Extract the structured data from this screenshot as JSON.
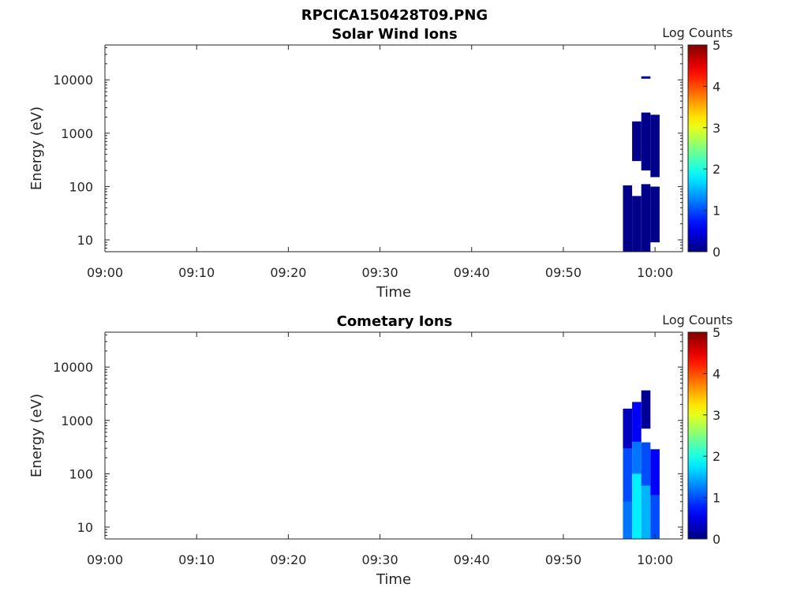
{
  "title": "RPCICA150428T09.PNG",
  "chart_data": [
    {
      "type": "heatmap",
      "title": "Solar Wind Ions",
      "xlabel": "Time",
      "ylabel": "Energy (eV)",
      "x_ticks": [
        "09:00",
        "09:10",
        "09:20",
        "09:30",
        "09:40",
        "09:50",
        "10:00"
      ],
      "xlim": [
        "09:00",
        "10:03"
      ],
      "y_scale": "log",
      "ylim": [
        6,
        45000
      ],
      "y_ticks": [
        "10",
        "100",
        "1000",
        "10000"
      ],
      "colorbar": {
        "label": "Log Counts",
        "range": [
          0,
          5
        ],
        "ticks": [
          "0",
          "1",
          "2",
          "3",
          "4",
          "5"
        ],
        "colormap": "jet"
      },
      "grid": false,
      "time_columns": [
        "09:57",
        "09:58",
        "09:59",
        "10:00"
      ],
      "cells": [
        {
          "t": "09:57",
          "e": [
            [
              6,
              95,
              0.05
            ]
          ]
        },
        {
          "t": "09:58",
          "e": [
            [
              6,
              60,
              0.05
            ],
            [
              300,
              1500,
              0.05
            ]
          ]
        },
        {
          "t": "09:59",
          "e": [
            [
              6,
              100,
              0.05
            ],
            [
              200,
              2200,
              0.05
            ],
            [
              10500,
              10500,
              0.05
            ]
          ]
        },
        {
          "t": "10:00",
          "e": [
            [
              9,
              90,
              0.05
            ],
            [
              150,
              2000,
              0.05
            ]
          ]
        }
      ]
    },
    {
      "type": "heatmap",
      "title": "Cometary Ions",
      "xlabel": "Time",
      "ylabel": "Energy (eV)",
      "x_ticks": [
        "09:00",
        "09:10",
        "09:20",
        "09:30",
        "09:40",
        "09:50",
        "10:00"
      ],
      "xlim": [
        "09:00",
        "10:03"
      ],
      "y_scale": "log",
      "ylim": [
        6,
        45000
      ],
      "y_ticks": [
        "10",
        "100",
        "1000",
        "10000"
      ],
      "colorbar": {
        "label": "Log Counts",
        "range": [
          0,
          5
        ],
        "ticks": [
          "0",
          "1",
          "2",
          "3",
          "4",
          "5"
        ],
        "colormap": "jet"
      },
      "grid": false,
      "time_columns": [
        "09:57",
        "09:58",
        "09:59",
        "10:00"
      ],
      "cells": [
        {
          "t": "09:57",
          "e": [
            [
              6,
              30,
              1.2
            ],
            [
              30,
              300,
              1.0
            ],
            [
              300,
              1500,
              0.3
            ]
          ]
        },
        {
          "t": "09:58",
          "e": [
            [
              6,
              100,
              1.8
            ],
            [
              100,
              400,
              1.2
            ],
            [
              400,
              2000,
              0.6
            ]
          ]
        },
        {
          "t": "09:59",
          "e": [
            [
              6,
              60,
              1.5
            ],
            [
              60,
              350,
              1.0
            ],
            [
              700,
              3300,
              0.1
            ]
          ]
        },
        {
          "t": "10:00",
          "e": [
            [
              6,
              40,
              1.0
            ],
            [
              40,
              260,
              0.6
            ]
          ]
        }
      ]
    }
  ]
}
